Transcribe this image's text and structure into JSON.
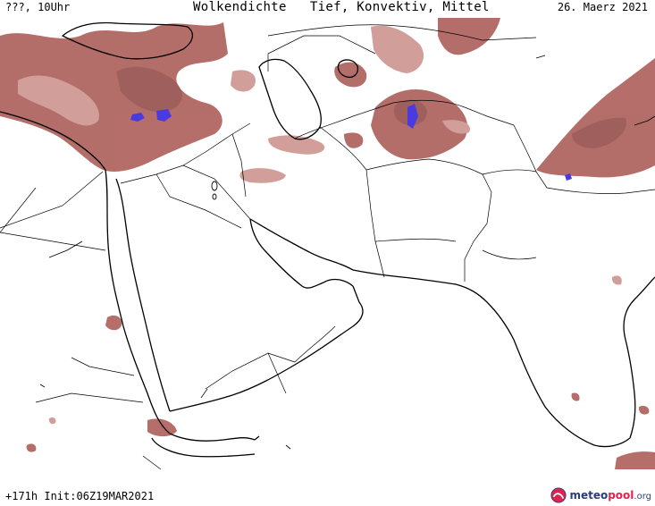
{
  "header": {
    "left": "???, 10Uhr",
    "title": "Wolkendichte   Tief, Konvektiv, Mittel",
    "date": "26. Maerz 2021"
  },
  "footer": {
    "run_info": "+171h Init:06Z19MAR2021",
    "logo_main": "meteo",
    "logo_accent": "pool",
    "logo_tld": ".org"
  },
  "colors": {
    "cloud": "#a8554f",
    "cloud_light": "#c98e89",
    "convective": "#4a3be0",
    "coast": "#000000",
    "border": "#000000"
  }
}
